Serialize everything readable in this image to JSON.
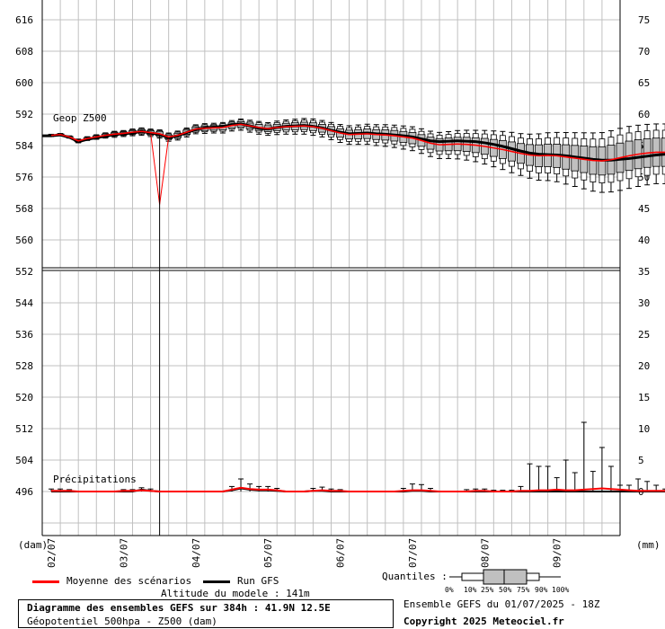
{
  "chart_data": {
    "type": "boxplot",
    "colors": {
      "mean": "#ff0000",
      "run": "#000000",
      "box_fill": "#c0c0c0",
      "grid": "#c0c0c0"
    },
    "top_panel": {
      "label": "Geop Z500",
      "left_ticks": [
        "616",
        "608",
        "600",
        "592",
        "584",
        "576",
        "568",
        "560",
        "552"
      ],
      "right_ticks": [
        "75",
        "70",
        "65",
        "60",
        "55",
        "50",
        "45",
        "40",
        "35"
      ],
      "ylim": [
        552,
        620
      ]
    },
    "bottom_panel": {
      "label": "Précipitations",
      "left_ticks": [
        "544",
        "536",
        "528",
        "520",
        "512",
        "504",
        "496"
      ],
      "right_ticks": [
        "30",
        "25",
        "20",
        "15",
        "10",
        "5",
        "0"
      ],
      "ylim": [
        0,
        35
      ]
    },
    "left_unit": "(dam)",
    "right_unit": "(mm)",
    "x_tick_labels": [
      "02/07",
      "03/07",
      "04/07",
      "05/07",
      "06/07",
      "07/07",
      "08/07",
      "09/07"
    ],
    "x_range_hours": [
      0,
      384
    ],
    "step_hours": 6,
    "z500": {
      "mean": [
        586.6,
        586.8,
        586.2,
        585.2,
        585.8,
        586.2,
        586.6,
        586.9,
        587.1,
        587.4,
        587.6,
        587.3,
        587.0,
        586.2,
        586.6,
        587.4,
        588.2,
        588.4,
        588.5,
        588.6,
        589.1,
        589.4,
        589.0,
        588.6,
        588.3,
        588.6,
        588.8,
        588.9,
        589.0,
        588.8,
        588.4,
        587.8,
        587.2,
        586.8,
        586.9,
        587.0,
        586.8,
        586.7,
        586.5,
        586.2,
        585.9,
        585.3,
        584.6,
        584.2,
        584.3,
        584.4,
        584.3,
        584.1,
        583.8,
        583.4,
        583.0,
        582.5,
        582.0,
        581.6,
        581.4,
        581.5,
        581.4,
        581.1,
        580.8,
        580.5,
        580.2,
        580.1,
        580.4,
        580.9,
        581.4,
        581.8,
        582.1,
        582.3,
        582.3,
        582.3,
        582.2,
        582.0,
        581.8,
        581.8,
        582.0,
        582.2,
        582.3,
        582.2,
        581.9,
        581.6
      ],
      "run": [
        586.5,
        586.7,
        586.1,
        585.0,
        585.6,
        586.0,
        586.4,
        586.8,
        587.0,
        587.2,
        587.6,
        587.2,
        586.8,
        586.0,
        586.5,
        587.3,
        588.1,
        588.5,
        588.7,
        588.8,
        589.3,
        589.5,
        589.0,
        588.4,
        588.2,
        588.6,
        588.9,
        589.0,
        589.1,
        588.9,
        588.5,
        587.9,
        587.4,
        587.0,
        587.1,
        587.2,
        587.0,
        586.9,
        586.7,
        586.5,
        586.2,
        585.7,
        585.2,
        585.0,
        585.1,
        585.2,
        585.1,
        585.0,
        584.7,
        584.3,
        583.8,
        583.2,
        582.6,
        582.1,
        581.8,
        581.7,
        581.6,
        581.4,
        581.1,
        580.8,
        580.5,
        580.3,
        580.3,
        580.5,
        580.7,
        581.0,
        581.3,
        581.6,
        581.8,
        581.9,
        582.0,
        582.0,
        582.0,
        582.1,
        582.2,
        582.3,
        582.3,
        582.3,
        582.2,
        582.1
      ],
      "spread": [
        0.3,
        0.3,
        0.3,
        0.5,
        0.5,
        0.6,
        0.7,
        0.8,
        0.8,
        0.9,
        1.0,
        1.0,
        1.1,
        1.1,
        1.2,
        1.2,
        1.2,
        1.3,
        1.3,
        1.4,
        1.4,
        1.5,
        1.6,
        1.7,
        1.7,
        1.8,
        1.9,
        2.0,
        2.1,
        2.2,
        2.2,
        2.3,
        2.4,
        2.5,
        2.6,
        2.7,
        2.8,
        2.9,
        3.0,
        3.1,
        3.2,
        3.3,
        3.4,
        3.5,
        3.6,
        3.8,
        4.0,
        4.2,
        4.5,
        4.8,
        5.1,
        5.4,
        5.6,
        5.9,
        6.2,
        6.4,
        6.6,
        6.9,
        7.2,
        7.5,
        7.8,
        8.0,
        8.2,
        8.3,
        8.3,
        8.2,
        8.1,
        8.0,
        8.0,
        8.0,
        8.1,
        8.1,
        8.2,
        8.2,
        8.2,
        8.2,
        8.1,
        8.0,
        8.0,
        8.0
      ],
      "spike": {
        "hour": 78,
        "min_dam": 569
      }
    },
    "precip": {
      "mean": [
        0.1,
        0.1,
        0.1,
        0,
        0,
        0,
        0,
        0,
        0.1,
        0.1,
        0.2,
        0.1,
        0,
        0,
        0,
        0,
        0,
        0,
        0,
        0,
        0.3,
        0.6,
        0.4,
        0.3,
        0.3,
        0.2,
        0,
        0,
        0,
        0.1,
        0.2,
        0.1,
        0.1,
        0,
        0,
        0,
        0,
        0,
        0,
        0.1,
        0.2,
        0.2,
        0.1,
        0,
        0,
        0,
        0,
        0.1,
        0.1,
        0,
        0,
        0,
        0.1,
        0.1,
        0.2,
        0.2,
        0.3,
        0.2,
        0.2,
        0.3,
        0.4,
        0.5,
        0.4,
        0.3,
        0.2,
        0.1,
        0.1,
        0.1,
        0.1,
        0.1,
        0,
        0,
        0,
        0,
        0.1,
        0.1,
        0.1,
        0,
        0,
        0
      ],
      "run": [
        0,
        0,
        0,
        0,
        0,
        0,
        0,
        0,
        0,
        0,
        0.3,
        0.1,
        0,
        0,
        0,
        0,
        0,
        0,
        0,
        0,
        0.2,
        0.5,
        0.3,
        0.2,
        0.2,
        0.1,
        0,
        0,
        0,
        0.1,
        0.1,
        0,
        0,
        0,
        0,
        0,
        0,
        0,
        0,
        0,
        0.1,
        0.1,
        0,
        0,
        0,
        0,
        0,
        0,
        0,
        0,
        0,
        0,
        0,
        0,
        0,
        0,
        0,
        0,
        0,
        0,
        0,
        0,
        0,
        0,
        0,
        0,
        0,
        0,
        0,
        0,
        0,
        0,
        0,
        0,
        0,
        0,
        0,
        0,
        0,
        0
      ],
      "max": [
        0.4,
        0.4,
        0.3,
        0.1,
        0.1,
        0.1,
        0.1,
        0.1,
        0.3,
        0.3,
        0.6,
        0.4,
        0.1,
        0.1,
        0.1,
        0.1,
        0.1,
        0.1,
        0.1,
        0.1,
        0.8,
        2.0,
        1.2,
        0.8,
        0.8,
        0.5,
        0.1,
        0.1,
        0.1,
        0.5,
        0.7,
        0.4,
        0.3,
        0.1,
        0.1,
        0.1,
        0.1,
        0.1,
        0.1,
        0.5,
        1.2,
        1.1,
        0.5,
        0.1,
        0.1,
        0.1,
        0.3,
        0.4,
        0.4,
        0.2,
        0.2,
        0.2,
        0.8,
        4.4,
        4.0,
        4.0,
        2.2,
        5.0,
        3.0,
        11.0,
        3.2,
        7.0,
        4.0,
        1.0,
        1.0,
        2.0,
        1.6,
        1.0,
        0.4,
        0.5,
        0.4,
        0.3,
        0.4,
        0.4,
        0.8,
        1.4,
        0.5,
        0.4,
        0.3,
        0.3
      ]
    }
  },
  "legend": {
    "mean_label": "Moyenne des scénarios",
    "run_label": "Run GFS",
    "altitude": "Altitude du modele : 141m",
    "quantiles_label": "Quantiles :",
    "quantile_ticks": [
      "0%",
      "10%",
      "25%",
      "50%",
      "75%",
      "90%",
      "100%"
    ]
  },
  "footer": {
    "title": "Diagramme des ensembles GEFS sur 384h : 41.9N 12.5E",
    "subtitle": "Géopotentiel 500hpa - Z500 (dam)",
    "ensemble": "Ensemble GEFS du 01/07/2025 - 18Z",
    "copyright": "Copyright 2025 Meteociel.fr"
  }
}
